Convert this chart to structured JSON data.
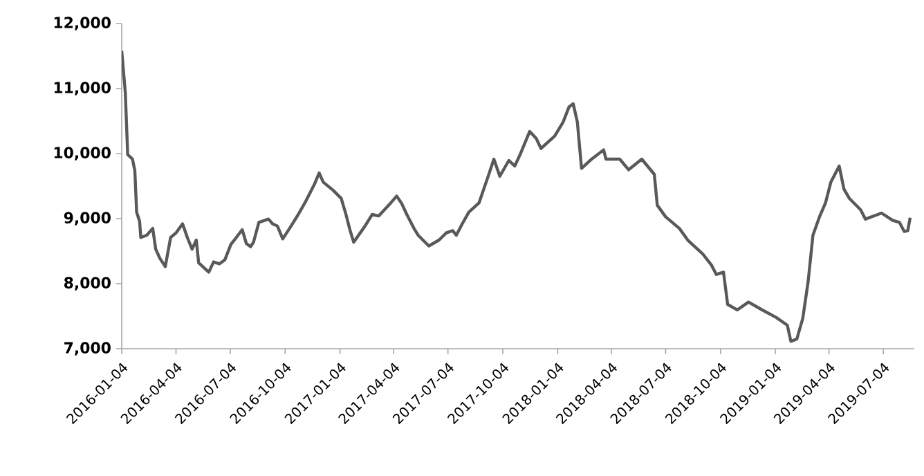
{
  "chart_data": {
    "type": "line",
    "x": [
      "2016-01-04",
      "2016-01-10",
      "2016-01-14",
      "2016-01-22",
      "2016-01-26",
      "2016-01-29",
      "2016-02-03",
      "2016-02-05",
      "2016-02-15",
      "2016-02-25",
      "2016-03-01",
      "2016-03-08",
      "2016-03-17",
      "2016-03-26",
      "2016-04-04",
      "2016-04-15",
      "2016-04-23",
      "2016-05-01",
      "2016-05-08",
      "2016-05-12",
      "2016-05-29",
      "2016-06-06",
      "2016-06-16",
      "2016-06-25",
      "2016-07-05",
      "2016-07-17",
      "2016-07-24",
      "2016-07-31",
      "2016-08-07",
      "2016-08-12",
      "2016-08-21",
      "2016-09-06",
      "2016-09-13",
      "2016-09-21",
      "2016-09-30",
      "2016-10-14",
      "2016-10-26",
      "2016-11-06",
      "2016-11-22",
      "2016-11-30",
      "2016-12-07",
      "2016-12-23",
      "2017-01-06",
      "2017-01-14",
      "2017-01-21",
      "2017-01-27",
      "2017-02-15",
      "2017-02-27",
      "2017-03-10",
      "2017-03-30",
      "2017-04-09",
      "2017-04-17",
      "2017-04-26",
      "2017-05-08",
      "2017-05-15",
      "2017-06-02",
      "2017-06-19",
      "2017-07-01",
      "2017-07-12",
      "2017-07-18",
      "2017-07-28",
      "2017-08-08",
      "2017-08-25",
      "2017-09-10",
      "2017-09-19",
      "2017-09-29",
      "2017-10-14",
      "2017-10-24",
      "2017-11-02",
      "2017-11-18",
      "2017-11-29",
      "2017-12-07",
      "2017-12-30",
      "2018-01-13",
      "2018-01-23",
      "2018-01-30",
      "2018-02-06",
      "2018-02-13",
      "2018-03-02",
      "2018-03-22",
      "2018-03-26",
      "2018-04-18",
      "2018-05-03",
      "2018-05-25",
      "2018-06-15",
      "2018-06-20",
      "2018-07-04",
      "2018-07-27",
      "2018-08-11",
      "2018-09-04",
      "2018-09-19",
      "2018-09-27",
      "2018-10-09",
      "2018-10-16",
      "2018-11-01",
      "2018-11-20",
      "2018-12-13",
      "2019-01-05",
      "2019-01-24",
      "2019-01-30",
      "2019-02-09",
      "2019-02-19",
      "2019-02-28",
      "2019-03-08",
      "2019-03-19",
      "2019-03-29",
      "2019-04-07",
      "2019-04-21",
      "2019-04-29",
      "2019-05-08",
      "2019-05-27",
      "2019-06-04",
      "2019-07-01",
      "2019-07-20",
      "2019-07-31",
      "2019-08-08",
      "2019-08-14",
      "2019-08-18"
    ],
    "series": [
      {
        "color": "#595959",
        "values": [
          11580,
          10940,
          9985,
          9915,
          9738,
          9100,
          8957,
          8710,
          8745,
          8850,
          8530,
          8390,
          8262,
          8710,
          8780,
          8920,
          8710,
          8530,
          8670,
          8320,
          8177,
          8334,
          8305,
          8368,
          8602,
          8745,
          8830,
          8617,
          8568,
          8638,
          8943,
          8993,
          8920,
          8887,
          8688,
          8887,
          9064,
          9240,
          9526,
          9702,
          9560,
          9440,
          9312,
          9064,
          8815,
          8638,
          8887,
          9064,
          9042,
          9240,
          9347,
          9240,
          9064,
          8850,
          8745,
          8580,
          8670,
          8780,
          8815,
          8745,
          8920,
          9100,
          9240,
          9666,
          9915,
          9652,
          9894,
          9809,
          9985,
          10340,
          10234,
          10078,
          10270,
          10483,
          10717,
          10766,
          10483,
          9773,
          9915,
          10057,
          9915,
          9915,
          9752,
          9915,
          9681,
          9206,
          9028,
          8850,
          8660,
          8460,
          8283,
          8142,
          8177,
          7681,
          7596,
          7717,
          7596,
          7483,
          7362,
          7113,
          7149,
          7468,
          8036,
          8745,
          9028,
          9240,
          9560,
          9809,
          9454,
          9312,
          9135,
          8993,
          9085,
          8972,
          8943,
          8802,
          8815,
          9014
        ]
      }
    ],
    "xlim": [
      "2016-01-04",
      "2019-08-25"
    ],
    "xticks": [
      "2016-01-04",
      "2016-04-04",
      "2016-07-04",
      "2016-10-04",
      "2017-01-04",
      "2017-04-04",
      "2017-07-04",
      "2017-10-04",
      "2018-01-04",
      "2018-04-04",
      "2018-07-04",
      "2018-10-04",
      "2019-01-04",
      "2019-04-04",
      "2019-07-04"
    ],
    "ylim": [
      7000,
      12000
    ],
    "yticks": [
      {
        "value": 7000,
        "label": "7,000"
      },
      {
        "value": 8000,
        "label": "8,000"
      },
      {
        "value": 9000,
        "label": "9,000"
      },
      {
        "value": 10000,
        "label": "10,000"
      },
      {
        "value": 11000,
        "label": "11,000"
      },
      {
        "value": 12000,
        "label": "12,000"
      }
    ],
    "grid": false,
    "marker": "none",
    "line_style": "solid"
  }
}
